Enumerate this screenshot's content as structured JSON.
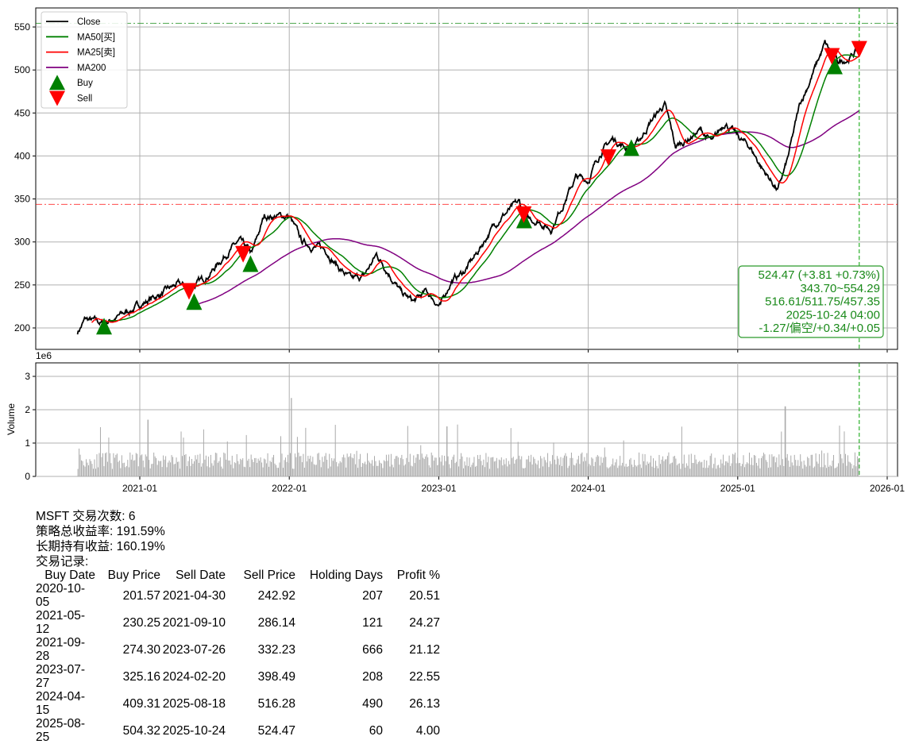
{
  "chart_data": [
    {
      "type": "line",
      "title": "",
      "ticker": "MSFT",
      "xlim": [
        "2020-06-01",
        "2026-01-31"
      ],
      "ylim": [
        172,
        570
      ],
      "yticks": [
        200,
        250,
        300,
        350,
        400,
        450,
        500,
        550
      ],
      "xticks": [
        "2021-01",
        "2022-01",
        "2023-01",
        "2024-01",
        "2025-01",
        "2026-01"
      ],
      "legend": {
        "placement": "top-left",
        "entries": [
          "Close",
          "MA50[买]",
          "MA25[卖]",
          "MA200",
          "Buy",
          "Sell"
        ]
      },
      "colors": {
        "close": "#000000",
        "ma50": "#008000",
        "ma25": "#ff0000",
        "ma200": "#800080",
        "buy": "#008000",
        "sell": "#ff0000"
      },
      "close_points": [
        [
          "2020-08-01",
          195
        ],
        [
          "2020-08-20",
          210
        ],
        [
          "2020-09-30",
          205
        ],
        [
          "2020-11-05",
          212
        ],
        [
          "2020-12-15",
          222
        ],
        [
          "2021-01-20",
          232
        ],
        [
          "2021-02-25",
          240
        ],
        [
          "2021-04-01",
          250
        ],
        [
          "2021-05-01",
          247
        ],
        [
          "2021-06-01",
          255
        ],
        [
          "2021-07-01",
          270
        ],
        [
          "2021-08-05",
          290
        ],
        [
          "2021-09-01",
          300
        ],
        [
          "2021-10-01",
          285
        ],
        [
          "2021-11-01",
          330
        ],
        [
          "2021-12-01",
          330
        ],
        [
          "2022-01-01",
          330
        ],
        [
          "2022-02-01",
          300
        ],
        [
          "2022-03-01",
          295
        ],
        [
          "2022-04-01",
          290
        ],
        [
          "2022-05-01",
          270
        ],
        [
          "2022-06-01",
          255
        ],
        [
          "2022-07-01",
          260
        ],
        [
          "2022-08-01",
          285
        ],
        [
          "2022-09-01",
          265
        ],
        [
          "2022-10-01",
          240
        ],
        [
          "2022-11-01",
          230
        ],
        [
          "2022-12-01",
          242
        ],
        [
          "2023-01-05",
          225
        ],
        [
          "2023-02-01",
          255
        ],
        [
          "2023-03-01",
          265
        ],
        [
          "2023-04-01",
          285
        ],
        [
          "2023-05-01",
          310
        ],
        [
          "2023-06-01",
          330
        ],
        [
          "2023-07-15",
          345
        ],
        [
          "2023-08-01",
          325
        ],
        [
          "2023-09-01",
          325
        ],
        [
          "2023-10-01",
          315
        ],
        [
          "2023-11-01",
          345
        ],
        [
          "2023-12-01",
          375
        ],
        [
          "2024-01-01",
          372
        ],
        [
          "2024-02-01",
          405
        ],
        [
          "2024-03-01",
          420
        ],
        [
          "2024-04-01",
          410
        ],
        [
          "2024-05-01",
          415
        ],
        [
          "2024-06-01",
          440
        ],
        [
          "2024-07-05",
          460
        ],
        [
          "2024-08-01",
          410
        ],
        [
          "2024-09-01",
          420
        ],
        [
          "2024-10-01",
          430
        ],
        [
          "2024-11-01",
          415
        ],
        [
          "2024-12-01",
          440
        ],
        [
          "2025-01-01",
          422
        ],
        [
          "2025-02-01",
          410
        ],
        [
          "2025-03-01",
          385
        ],
        [
          "2025-04-08",
          360
        ],
        [
          "2025-05-01",
          395
        ],
        [
          "2025-06-01",
          460
        ],
        [
          "2025-07-01",
          495
        ],
        [
          "2025-08-01",
          530
        ],
        [
          "2025-09-01",
          508
        ],
        [
          "2025-10-01",
          515
        ],
        [
          "2025-10-24",
          524.47
        ]
      ],
      "buy_signals": [
        [
          "2020-10-05",
          201.57
        ],
        [
          "2021-05-12",
          230.25
        ],
        [
          "2021-09-28",
          274.3
        ],
        [
          "2023-07-27",
          325.16
        ],
        [
          "2024-04-15",
          409.31
        ],
        [
          "2025-08-25",
          504.32
        ]
      ],
      "sell_signals": [
        [
          "2021-04-30",
          242.92
        ],
        [
          "2021-09-10",
          286.14
        ],
        [
          "2023-07-26",
          332.23
        ],
        [
          "2024-02-20",
          398.49
        ],
        [
          "2025-08-18",
          516.28
        ],
        [
          "2025-10-24",
          524.47
        ]
      ],
      "hlines": [
        {
          "value": 554.29,
          "color": "#008000"
        },
        {
          "value": 343.7,
          "color": "#ff0000"
        }
      ],
      "vline": "2025-10-24",
      "annotation": [
        "524.47 (+3.81 +0.73%)",
        "343.70~554.29",
        "516.61/511.75/457.35",
        "2025-10-24 04:00",
        "-1.27/偏空/+0.34/+0.05"
      ]
    },
    {
      "type": "bar",
      "ylabel": "Volume",
      "y_scale_label": "1e6",
      "ylim": [
        0,
        3.4
      ],
      "yticks": [
        0,
        1,
        2,
        3
      ],
      "typical_volume": 0.45,
      "peaks": [
        [
          "2022-01-05",
          2.35
        ],
        [
          "2025-04-25",
          2.1
        ],
        [
          "2023-01-20",
          1.5
        ],
        [
          "2021-01-20",
          1.7
        ]
      ],
      "color": "#aaaaaa"
    }
  ],
  "summary": {
    "line1": "MSFT 交易次数: 6",
    "line2": "策略总收益率: 191.59%",
    "line3": "长期持有收益: 160.19%",
    "line4": "交易记录:",
    "headers": [
      "Buy Date",
      "Buy Price",
      "Sell Date",
      "Sell Price",
      "Holding Days",
      "Profit %"
    ],
    "rows": [
      [
        "2020-10-05",
        "201.57",
        "2021-04-30",
        "242.92",
        "207",
        "20.51"
      ],
      [
        "2021-05-12",
        "230.25",
        "2021-09-10",
        "286.14",
        "121",
        "24.27"
      ],
      [
        "2021-09-28",
        "274.30",
        "2023-07-26",
        "332.23",
        "666",
        "21.12"
      ],
      [
        "2023-07-27",
        "325.16",
        "2024-02-20",
        "398.49",
        "208",
        "22.55"
      ],
      [
        "2024-04-15",
        "409.31",
        "2025-08-18",
        "516.28",
        "490",
        "26.13"
      ],
      [
        "2025-08-25",
        "504.32",
        "2025-10-24",
        "524.47",
        "60",
        "4.00"
      ]
    ]
  }
}
